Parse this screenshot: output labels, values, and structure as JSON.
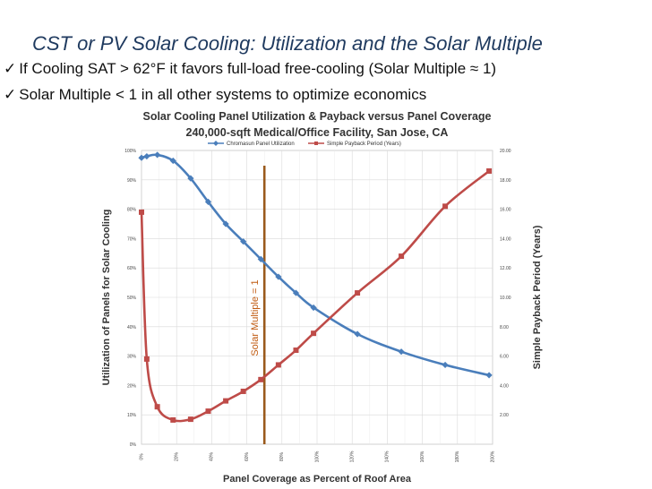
{
  "slide": {
    "title": "CST or PV Solar Cooling: Utilization and the Solar Multiple",
    "bullets": [
      "If Cooling SAT > 62°F it favors full-load free-cooling (Solar Multiple ≈ 1)",
      "Solar Multiple < 1 in all other systems to optimize economics"
    ]
  },
  "colors": {
    "utilization": "#4a7ebb",
    "payback": "#be4b48",
    "solar_multiple_line": "#9a5a1c",
    "grid": "#d9d9d9",
    "title": "#1f3a5f"
  },
  "chart_data": {
    "type": "line",
    "title": "Solar Cooling Panel Utilization & Payback versus Panel Coverage",
    "subtitle": "240,000-sqft Medical/Office Facility, San Jose, CA",
    "xlabel": "Panel Coverage as Percent of Roof Area",
    "ylabel": "Utilization of Panels for Solar Cooling",
    "y2label": "Simple Payback Period (Years)",
    "x_ticks": [
      "0%",
      "20%",
      "40%",
      "60%",
      "80%",
      "100%",
      "120%",
      "140%",
      "160%",
      "180%",
      "200%"
    ],
    "y_ticks": [
      "0%",
      "10%",
      "20%",
      "30%",
      "40%",
      "50%",
      "60%",
      "70%",
      "80%",
      "90%",
      "100%"
    ],
    "y2_ticks": [
      "2.00",
      "4.00",
      "6.00",
      "8.00",
      "10.00",
      "12.00",
      "14.00",
      "16.00",
      "18.00",
      "20.00"
    ],
    "xlim": [
      0,
      200
    ],
    "ylim": [
      0,
      100
    ],
    "y2lim": [
      0,
      20
    ],
    "grid": true,
    "legend": "top-center",
    "series": [
      {
        "name": "Chromasun Panel Utilization",
        "axis": "left",
        "x": [
          0,
          3,
          9,
          18,
          28,
          38,
          48,
          58,
          68,
          78,
          88,
          98,
          123,
          148,
          173,
          198
        ],
        "y": [
          97.5,
          98,
          98.5,
          96.5,
          90.5,
          82.5,
          75,
          69,
          63,
          57,
          51.5,
          46.5,
          37.5,
          31.5,
          27,
          23.5
        ]
      },
      {
        "name": "Simple Payback Period (Years)",
        "axis": "right",
        "x": [
          0,
          3,
          9,
          18,
          28,
          38,
          48,
          58,
          68,
          78,
          88,
          98,
          123,
          148,
          173,
          198
        ],
        "y": [
          15.8,
          5.8,
          2.55,
          1.65,
          1.7,
          2.25,
          2.95,
          3.6,
          4.4,
          5.4,
          6.4,
          7.55,
          10.3,
          12.8,
          16.2,
          18.6
        ]
      }
    ],
    "annotations": [
      {
        "text": "Solar Multiple = 1",
        "x": 70
      }
    ]
  }
}
